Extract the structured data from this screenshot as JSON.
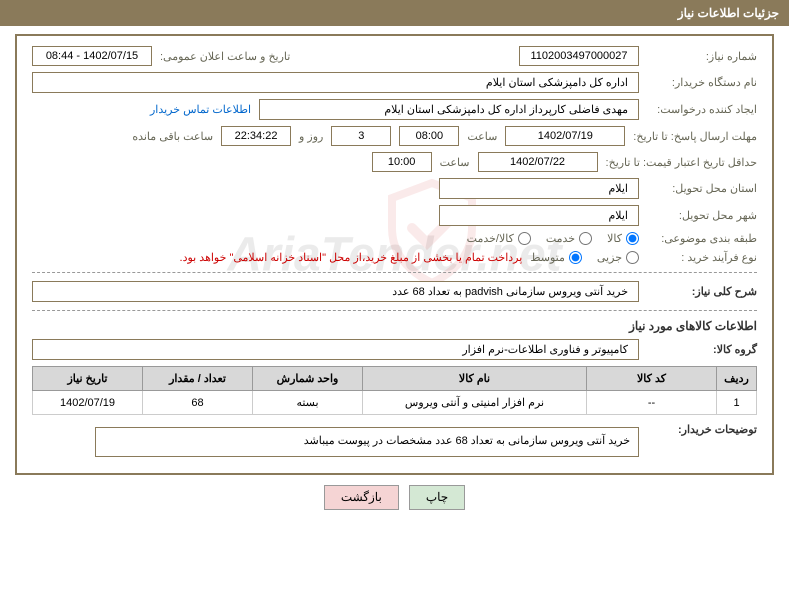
{
  "header": {
    "title": "جزئیات اطلاعات نیاز"
  },
  "fields": {
    "need_number": {
      "label": "شماره نیاز:",
      "value": "1102003497000027"
    },
    "announce_date": {
      "label": "تاریخ و ساعت اعلان عمومی:",
      "value": "1402/07/15 - 08:44"
    },
    "buyer_org": {
      "label": "نام دستگاه خریدار:",
      "value": "اداره کل دامپزشکی استان ایلام"
    },
    "requester": {
      "label": "ایجاد کننده درخواست:",
      "value": "مهدی فاضلی کارپرداز اداره کل دامپزشکی استان ایلام"
    },
    "contact_link": "اطلاعات تماس خریدار",
    "response_deadline_label": "مهلت ارسال پاسخ: تا تاریخ:",
    "response_deadline_date": "1402/07/19",
    "time_label": "ساعت",
    "response_deadline_time": "08:00",
    "days_remaining": "3",
    "days_and_label": "روز و",
    "time_remaining": "22:34:22",
    "remaining_label": "ساعت باقی مانده",
    "price_validity_label": "حداقل تاریخ اعتبار قیمت: تا تاریخ:",
    "price_validity_date": "1402/07/22",
    "price_validity_time": "10:00",
    "delivery_province": {
      "label": "استان محل تحویل:",
      "value": "ایلام"
    },
    "delivery_city": {
      "label": "شهر محل تحویل:",
      "value": "ایلام"
    },
    "category_label": "طبقه بندی موضوعی:",
    "process_type_label": "نوع فرآیند خرید :",
    "payment_note": "پرداخت تمام یا بخشی از مبلغ خرید،از محل \"اسناد خزانه اسلامی\" خواهد بود.",
    "summary": {
      "label": "شرح کلی نیاز:",
      "value": "خرید آنتی ویروس سازمانی padvish به تعداد 68 عدد"
    },
    "goods_info_title": "اطلاعات کالاهای مورد نیاز",
    "goods_group": {
      "label": "گروه کالا:",
      "value": "کامپیوتر و فناوری اطلاعات-نرم افزار"
    },
    "buyer_notes": {
      "label": "توضیحات خریدار:",
      "value": "خرید آنتی ویروس سازمانی به تعداد 68 عدد مشخصات در پیوست میباشد"
    }
  },
  "radios": {
    "category": [
      {
        "label": "کالا",
        "checked": true
      },
      {
        "label": "خدمت",
        "checked": false
      },
      {
        "label": "کالا/خدمت",
        "checked": false
      }
    ],
    "process": [
      {
        "label": "جزیی",
        "checked": false
      },
      {
        "label": "متوسط",
        "checked": true
      }
    ]
  },
  "table": {
    "headers": [
      "ردیف",
      "کد کالا",
      "نام کالا",
      "واحد شمارش",
      "تعداد / مقدار",
      "تاریخ نیاز"
    ],
    "rows": [
      [
        "1",
        "--",
        "نرم افزار امنیتی و آنتی ویروس",
        "بسته",
        "68",
        "1402/07/19"
      ]
    ]
  },
  "buttons": {
    "print": "چاپ",
    "back": "بازگشت"
  }
}
